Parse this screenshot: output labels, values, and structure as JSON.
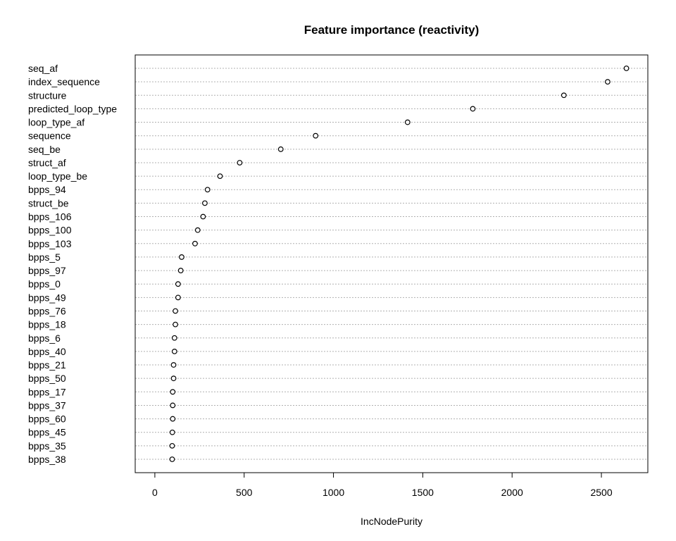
{
  "chart_data": {
    "type": "scatter",
    "title": "Feature importance (reactivity)",
    "xlabel": "IncNodePurity",
    "ylabel": "",
    "xlim": [
      -110,
      2760
    ],
    "xticks": [
      0,
      500,
      1000,
      1500,
      2000,
      2500
    ],
    "xtick_labels": [
      "0",
      "500",
      "1000",
      "1500",
      "2000",
      "2500"
    ],
    "grid": "horizontal dotted",
    "categories": [
      "seq_af",
      "index_sequence",
      "structure",
      "predicted_loop_type",
      "loop_type_af",
      "sequence",
      "seq_be",
      "struct_af",
      "loop_type_be",
      "bpps_94",
      "struct_be",
      "bpps_106",
      "bpps_100",
      "bpps_103",
      "bpps_5",
      "bpps_97",
      "bpps_0",
      "bpps_49",
      "bpps_76",
      "bpps_18",
      "bpps_6",
      "bpps_40",
      "bpps_21",
      "bpps_50",
      "bpps_17",
      "bpps_37",
      "bpps_60",
      "bpps_45",
      "bpps_35",
      "bpps_38"
    ],
    "values": [
      2640,
      2535,
      2290,
      1780,
      1415,
      900,
      705,
      475,
      365,
      295,
      280,
      270,
      240,
      225,
      150,
      145,
      130,
      130,
      115,
      115,
      110,
      110,
      105,
      105,
      100,
      100,
      100,
      98,
      97,
      97
    ]
  }
}
